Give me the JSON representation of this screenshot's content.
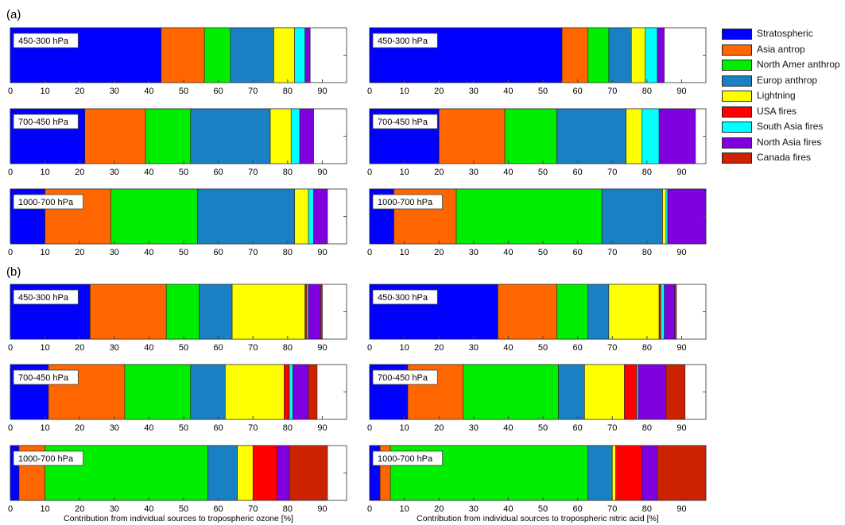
{
  "figure": {
    "label_a": "(a)",
    "label_b": "(b)"
  },
  "legend": [
    {
      "name": "Stratospheric",
      "color": "#0000ff"
    },
    {
      "name": "Asia antrop",
      "color": "#ff6600"
    },
    {
      "name": "North Amer anthrop",
      "color": "#00ee00"
    },
    {
      "name": "Europ anthrop",
      "color": "#1a80c4"
    },
    {
      "name": "Lightning",
      "color": "#ffff00"
    },
    {
      "name": "USA fires",
      "color": "#ff0000"
    },
    {
      "name": "South Asia fires",
      "color": "#00ffff"
    },
    {
      "name": "North Asia fires",
      "color": "#8000e0"
    },
    {
      "name": "Canada fires",
      "color": "#cc2200"
    }
  ],
  "chart_data": [
    {
      "type": "bar",
      "orientation": "horizontal",
      "stacked": true,
      "group": "a",
      "column": "left",
      "title": "450-300 hPa",
      "xlabel": "",
      "xlim": [
        0,
        97
      ],
      "xticks": [
        0,
        10,
        20,
        30,
        40,
        50,
        60,
        70,
        80,
        90
      ],
      "segments": [
        {
          "name": "Stratospheric",
          "value": 43.5
        },
        {
          "name": "Asia antrop",
          "value": 12.5
        },
        {
          "name": "North Amer anthrop",
          "value": 7.5
        },
        {
          "name": "Europ anthrop",
          "value": 12.5
        },
        {
          "name": "Lightning",
          "value": 6
        },
        {
          "name": "South Asia fires",
          "value": 3
        },
        {
          "name": "North Asia fires",
          "value": 1.5
        }
      ]
    },
    {
      "type": "bar",
      "orientation": "horizontal",
      "stacked": true,
      "group": "a",
      "column": "left",
      "title": "700-450 hPa",
      "xlabel": "",
      "xlim": [
        0,
        97
      ],
      "xticks": [
        0,
        10,
        20,
        30,
        40,
        50,
        60,
        70,
        80,
        90
      ],
      "segments": [
        {
          "name": "Stratospheric",
          "value": 21.5
        },
        {
          "name": "Asia antrop",
          "value": 17.5
        },
        {
          "name": "North Amer anthrop",
          "value": 13
        },
        {
          "name": "Europ anthrop",
          "value": 23
        },
        {
          "name": "Lightning",
          "value": 6
        },
        {
          "name": "South Asia fires",
          "value": 2.5
        },
        {
          "name": "North Asia fires",
          "value": 4
        }
      ]
    },
    {
      "type": "bar",
      "orientation": "horizontal",
      "stacked": true,
      "group": "a",
      "column": "left",
      "title": "1000-700 hPa",
      "xlabel": "",
      "xlim": [
        0,
        97
      ],
      "xticks": [
        0,
        10,
        20,
        30,
        40,
        50,
        60,
        70,
        80,
        90
      ],
      "segments": [
        {
          "name": "Stratospheric",
          "value": 10
        },
        {
          "name": "Asia antrop",
          "value": 19
        },
        {
          "name": "North Amer anthrop",
          "value": 25
        },
        {
          "name": "Europ anthrop",
          "value": 28
        },
        {
          "name": "Lightning",
          "value": 4
        },
        {
          "name": "South Asia fires",
          "value": 1.5
        },
        {
          "name": "North Asia fires",
          "value": 4
        }
      ]
    },
    {
      "type": "bar",
      "orientation": "horizontal",
      "stacked": true,
      "group": "a",
      "column": "right",
      "title": "450-300 hPa",
      "xlabel": "",
      "xlim": [
        0,
        97
      ],
      "xticks": [
        0,
        10,
        20,
        30,
        40,
        50,
        60,
        70,
        80,
        90
      ],
      "segments": [
        {
          "name": "Stratospheric",
          "value": 55.5
        },
        {
          "name": "Asia antrop",
          "value": 7.5
        },
        {
          "name": "North Amer anthrop",
          "value": 6
        },
        {
          "name": "Europ anthrop",
          "value": 6.5
        },
        {
          "name": "Lightning",
          "value": 4
        },
        {
          "name": "South Asia fires",
          "value": 3.5
        },
        {
          "name": "North Asia fires",
          "value": 2
        }
      ]
    },
    {
      "type": "bar",
      "orientation": "horizontal",
      "stacked": true,
      "group": "a",
      "column": "right",
      "title": "700-450 hPa",
      "xlabel": "",
      "xlim": [
        0,
        97
      ],
      "xticks": [
        0,
        10,
        20,
        30,
        40,
        50,
        60,
        70,
        80,
        90
      ],
      "segments": [
        {
          "name": "Stratospheric",
          "value": 20
        },
        {
          "name": "Asia antrop",
          "value": 19
        },
        {
          "name": "North Amer anthrop",
          "value": 15
        },
        {
          "name": "Europ anthrop",
          "value": 20
        },
        {
          "name": "Lightning",
          "value": 4.5
        },
        {
          "name": "South Asia fires",
          "value": 5
        },
        {
          "name": "North Asia fires",
          "value": 10.5
        }
      ]
    },
    {
      "type": "bar",
      "orientation": "horizontal",
      "stacked": true,
      "group": "a",
      "column": "right",
      "title": "1000-700 hPa",
      "xlabel": "",
      "xlim": [
        0,
        97
      ],
      "xticks": [
        0,
        10,
        20,
        30,
        40,
        50,
        60,
        70,
        80,
        90
      ],
      "segments": [
        {
          "name": "Stratospheric",
          "value": 7
        },
        {
          "name": "Asia antrop",
          "value": 18
        },
        {
          "name": "North Amer anthrop",
          "value": 42
        },
        {
          "name": "Europ anthrop",
          "value": 17.5
        },
        {
          "name": "Lightning",
          "value": 1
        },
        {
          "name": "South Asia fires",
          "value": 0.5
        },
        {
          "name": "North Asia fires",
          "value": 11
        }
      ]
    },
    {
      "type": "bar",
      "orientation": "horizontal",
      "stacked": true,
      "group": "b",
      "column": "left",
      "title": "450-300 hPa",
      "xlabel": "",
      "xlim": [
        0,
        97
      ],
      "xticks": [
        0,
        10,
        20,
        30,
        40,
        50,
        60,
        70,
        80,
        90
      ],
      "segments": [
        {
          "name": "Stratospheric",
          "value": 23
        },
        {
          "name": "Asia antrop",
          "value": 22
        },
        {
          "name": "North Amer anthrop",
          "value": 9.5
        },
        {
          "name": "Europ anthrop",
          "value": 9.5
        },
        {
          "name": "Lightning",
          "value": 21
        },
        {
          "name": "USA fires",
          "value": 0.5
        },
        {
          "name": "South Asia fires",
          "value": 0.5
        },
        {
          "name": "North Asia fires",
          "value": 3.5
        },
        {
          "name": "Canada fires",
          "value": 0.5
        }
      ]
    },
    {
      "type": "bar",
      "orientation": "horizontal",
      "stacked": true,
      "group": "b",
      "column": "left",
      "title": "700-450 hPa",
      "xlabel": "",
      "xlim": [
        0,
        97
      ],
      "xticks": [
        0,
        10,
        20,
        30,
        40,
        50,
        60,
        70,
        80,
        90
      ],
      "segments": [
        {
          "name": "Stratospheric",
          "value": 11
        },
        {
          "name": "Asia antrop",
          "value": 22
        },
        {
          "name": "North Amer anthrop",
          "value": 19
        },
        {
          "name": "Europ anthrop",
          "value": 10
        },
        {
          "name": "Lightning",
          "value": 17
        },
        {
          "name": "USA fires",
          "value": 1.5
        },
        {
          "name": "South Asia fires",
          "value": 1
        },
        {
          "name": "North Asia fires",
          "value": 4.5
        },
        {
          "name": "Canada fires",
          "value": 2.5
        }
      ]
    },
    {
      "type": "bar",
      "orientation": "horizontal",
      "stacked": true,
      "group": "b",
      "column": "left",
      "title": "1000-700 hPa",
      "xlabel": "Contribution from individual sources to tropospheric ozone [%]",
      "xlim": [
        0,
        97
      ],
      "xticks": [
        0,
        10,
        20,
        30,
        40,
        50,
        60,
        70,
        80,
        90
      ],
      "segments": [
        {
          "name": "Stratospheric",
          "value": 2.5
        },
        {
          "name": "Asia antrop",
          "value": 7.5
        },
        {
          "name": "North Amer anthrop",
          "value": 47
        },
        {
          "name": "Europ anthrop",
          "value": 8.5
        },
        {
          "name": "Lightning",
          "value": 4.5
        },
        {
          "name": "USA fires",
          "value": 7
        },
        {
          "name": "North Asia fires",
          "value": 3.5
        },
        {
          "name": "Canada fires",
          "value": 11
        }
      ]
    },
    {
      "type": "bar",
      "orientation": "horizontal",
      "stacked": true,
      "group": "b",
      "column": "right",
      "title": "450-300 hPa",
      "xlabel": "",
      "xlim": [
        0,
        97
      ],
      "xticks": [
        0,
        10,
        20,
        30,
        40,
        50,
        60,
        70,
        80,
        90
      ],
      "segments": [
        {
          "name": "Stratospheric",
          "value": 37
        },
        {
          "name": "Asia antrop",
          "value": 17
        },
        {
          "name": "North Amer anthrop",
          "value": 9
        },
        {
          "name": "Europ anthrop",
          "value": 6
        },
        {
          "name": "Lightning",
          "value": 14.5
        },
        {
          "name": "USA fires",
          "value": 0.5
        },
        {
          "name": "South Asia fires",
          "value": 1
        },
        {
          "name": "North Asia fires",
          "value": 3
        },
        {
          "name": "Canada fires",
          "value": 0.5
        }
      ]
    },
    {
      "type": "bar",
      "orientation": "horizontal",
      "stacked": true,
      "group": "b",
      "column": "right",
      "title": "700-450 hPa",
      "xlabel": "",
      "xlim": [
        0,
        97
      ],
      "xticks": [
        0,
        10,
        20,
        30,
        40,
        50,
        60,
        70,
        80,
        90
      ],
      "segments": [
        {
          "name": "Stratospheric",
          "value": 11
        },
        {
          "name": "Asia antrop",
          "value": 16
        },
        {
          "name": "North Amer anthrop",
          "value": 27.5
        },
        {
          "name": "Europ anthrop",
          "value": 7.5
        },
        {
          "name": "Lightning",
          "value": 11.5
        },
        {
          "name": "USA fires",
          "value": 3.5
        },
        {
          "name": "South Asia fires",
          "value": 0.5
        },
        {
          "name": "North Asia fires",
          "value": 8
        },
        {
          "name": "Canada fires",
          "value": 5.5
        }
      ]
    },
    {
      "type": "bar",
      "orientation": "horizontal",
      "stacked": true,
      "group": "b",
      "column": "right",
      "title": "1000-700 hPa",
      "xlabel": "Contribution from individual sources to tropospheric nitric acid [%]",
      "xlim": [
        0,
        97
      ],
      "xticks": [
        0,
        10,
        20,
        30,
        40,
        50,
        60,
        70,
        80,
        90
      ],
      "segments": [
        {
          "name": "Stratospheric",
          "value": 3
        },
        {
          "name": "Asia antrop",
          "value": 3
        },
        {
          "name": "North Amer anthrop",
          "value": 57
        },
        {
          "name": "Europ anthrop",
          "value": 7
        },
        {
          "name": "Lightning",
          "value": 1
        },
        {
          "name": "USA fires",
          "value": 7.5
        },
        {
          "name": "North Asia fires",
          "value": 4.5
        },
        {
          "name": "Canada fires",
          "value": 14
        }
      ]
    }
  ]
}
